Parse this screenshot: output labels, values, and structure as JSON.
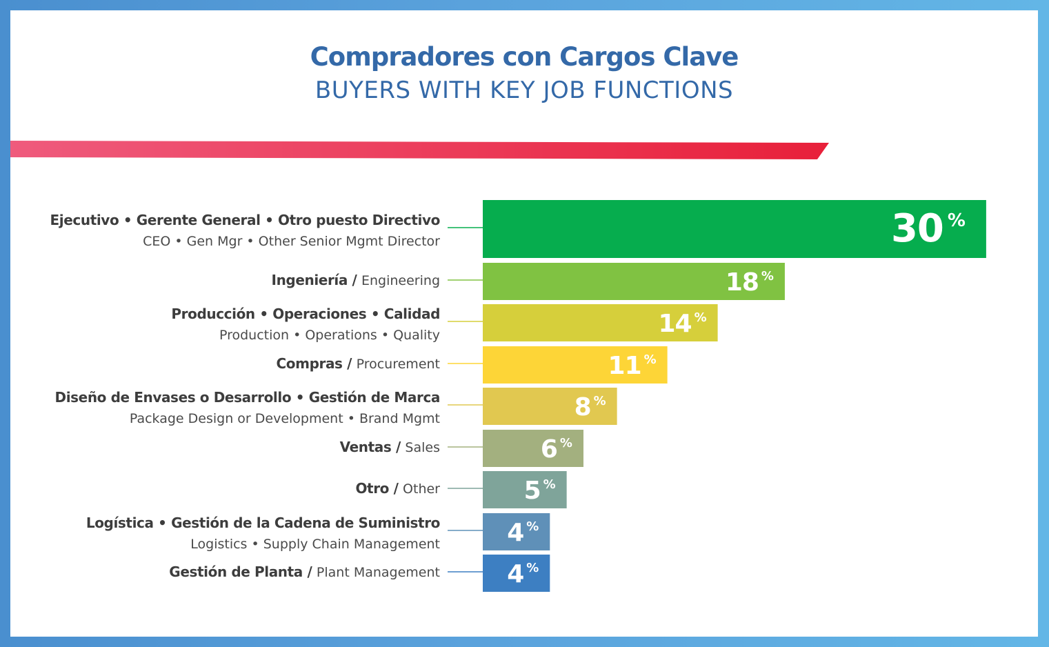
{
  "header": {
    "title": "Compradores con Cargos Clave",
    "subtitle": "BUYERS WITH KEY JOB FUNCTIONS"
  },
  "colors": {
    "title": "#3469a8",
    "stripe_start": "#ef5b7d",
    "stripe_end": "#e8203a"
  },
  "chart_data": {
    "type": "bar",
    "orientation": "horizontal",
    "title": "Compradores con Cargos Clave",
    "subtitle": "BUYERS WITH KEY JOB FUNCTIONS",
    "unit": "%",
    "xlim": [
      0,
      30
    ],
    "categories": [
      {
        "es": "Ejecutivo • Gerente General • Otro puesto Directivo",
        "en": "CEO • Gen Mgr • Other Senior Mgmt Director",
        "layout": "two-line",
        "value": 30,
        "label": "30",
        "color": "#06ad4e"
      },
      {
        "es": "Ingeniería",
        "en": "Engineering",
        "layout": "inline",
        "value": 18,
        "label": "18",
        "color": "#80c242"
      },
      {
        "es": "Producción • Operaciones • Calidad",
        "en": "Production • Operations • Quality",
        "layout": "two-line",
        "value": 14,
        "label": "14",
        "color": "#d6cf3b"
      },
      {
        "es": "Compras",
        "en": "Procurement",
        "layout": "inline",
        "value": 11,
        "label": "11",
        "color": "#fdd537"
      },
      {
        "es": "Diseño de Envases o Desarrollo • Gestión de Marca",
        "en": "Package Design or Development • Brand Mgmt",
        "layout": "two-line",
        "value": 8,
        "label": "8",
        "color": "#e1c850"
      },
      {
        "es": "Ventas",
        "en": "Sales",
        "layout": "inline",
        "value": 6,
        "label": "6",
        "color": "#a3b07f"
      },
      {
        "es": "Otro",
        "en": "Other",
        "layout": "inline",
        "value": 5,
        "label": "5",
        "color": "#7fa49a"
      },
      {
        "es": "Logística • Gestión de la Cadena de Suministro",
        "en": "Logistics • Supply Chain Management",
        "layout": "two-line",
        "value": 4,
        "label": "4",
        "color": "#5f90b8"
      },
      {
        "es": "Gestión de Planta",
        "en": "Plant Management",
        "layout": "inline",
        "value": 4,
        "label": "4",
        "color": "#3d7fc2"
      }
    ]
  }
}
